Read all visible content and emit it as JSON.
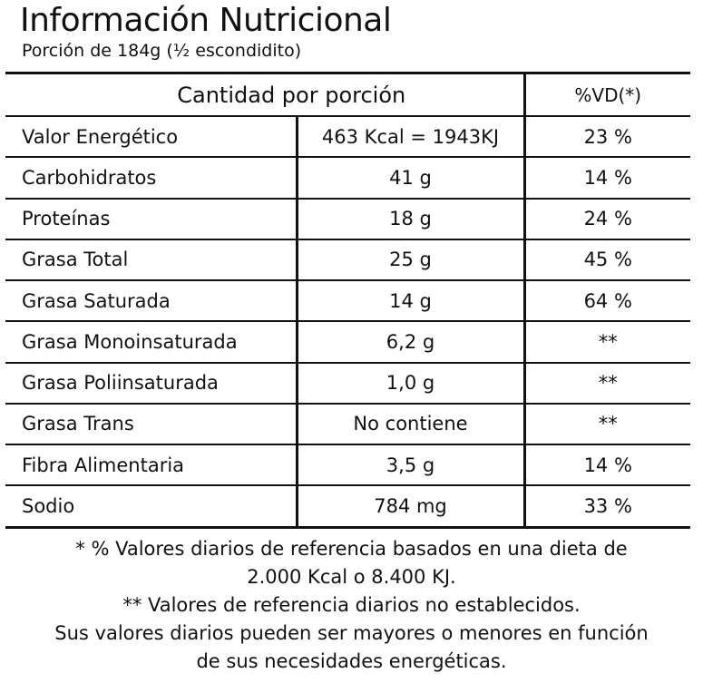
{
  "label": {
    "title": "Información Nutricional",
    "serving": "Porción de 184g (½ escondidito)"
  },
  "table": {
    "header_amount": "Cantidad por porción",
    "header_dv": "%VD(*)",
    "rows": [
      {
        "name": "Valor Energético",
        "amount": "463 Kcal = 1943KJ",
        "dv": "23 %"
      },
      {
        "name": "Carbohidratos",
        "amount": "41 g",
        "dv": "14 %"
      },
      {
        "name": "Proteínas",
        "amount": "18 g",
        "dv": "24 %"
      },
      {
        "name": "Grasa Total",
        "amount": "25 g",
        "dv": "45 %"
      },
      {
        "name": "Grasa Saturada",
        "amount": "14 g",
        "dv": "64 %"
      },
      {
        "name": "Grasa Monoinsaturada",
        "amount": "6,2 g",
        "dv": "**"
      },
      {
        "name": "Grasa Poliinsaturada",
        "amount": "1,0 g",
        "dv": "**"
      },
      {
        "name": "Grasa Trans",
        "amount": "No contiene",
        "dv": "**"
      },
      {
        "name": "Fibra Alimentaria",
        "amount": "3,5 g",
        "dv": "14 %"
      },
      {
        "name": "Sodio",
        "amount": "784 mg",
        "dv": "33 %"
      }
    ]
  },
  "footer": {
    "lines": [
      "* % Valores diarios de referencia basados en una dieta de",
      "2.000 Kcal o 8.400 KJ.",
      "** Valores de referencia diarios no establecidos.",
      "Sus valores diarios pueden ser mayores o menores en función",
      "de sus necesidades energéticas."
    ]
  }
}
